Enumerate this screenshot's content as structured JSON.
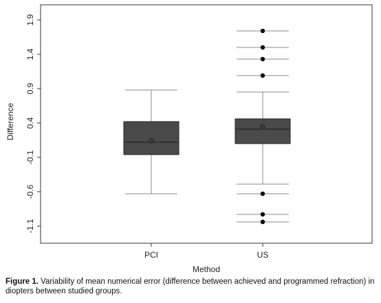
{
  "chart_data": {
    "type": "box",
    "xlabel": "Method",
    "ylabel": "Difference",
    "ylim": [
      -1.35,
      2.12
    ],
    "y_ticks": [
      "1.9",
      "1.4",
      "0.9",
      "0.4",
      "-0.1",
      "-0.6",
      "-1.1"
    ],
    "y_tick_values": [
      1.9,
      1.4,
      0.9,
      0.4,
      -0.1,
      -0.6,
      -1.1
    ],
    "categories": [
      "PCI",
      "US"
    ],
    "grid": false,
    "box_color": "#4a4a4a",
    "boxes": [
      {
        "name": "PCI",
        "whisker_low": -0.63,
        "q1": -0.06,
        "median": 0.12,
        "mean": 0.14,
        "q3": 0.42,
        "whisker_high": 0.88,
        "outliers": []
      },
      {
        "name": "US",
        "whisker_low": -0.49,
        "q1": 0.1,
        "median": 0.31,
        "mean": 0.34,
        "q3": 0.46,
        "whisker_high": 0.85,
        "outliers": [
          1.74,
          1.5,
          1.33,
          1.09,
          -0.63,
          -0.93,
          -1.04
        ]
      }
    ]
  },
  "caption": {
    "label": "Figure 1.",
    "text": " Variability of mean numerical error (difference between achieved and programmed refraction) in diopters between studied groups."
  }
}
